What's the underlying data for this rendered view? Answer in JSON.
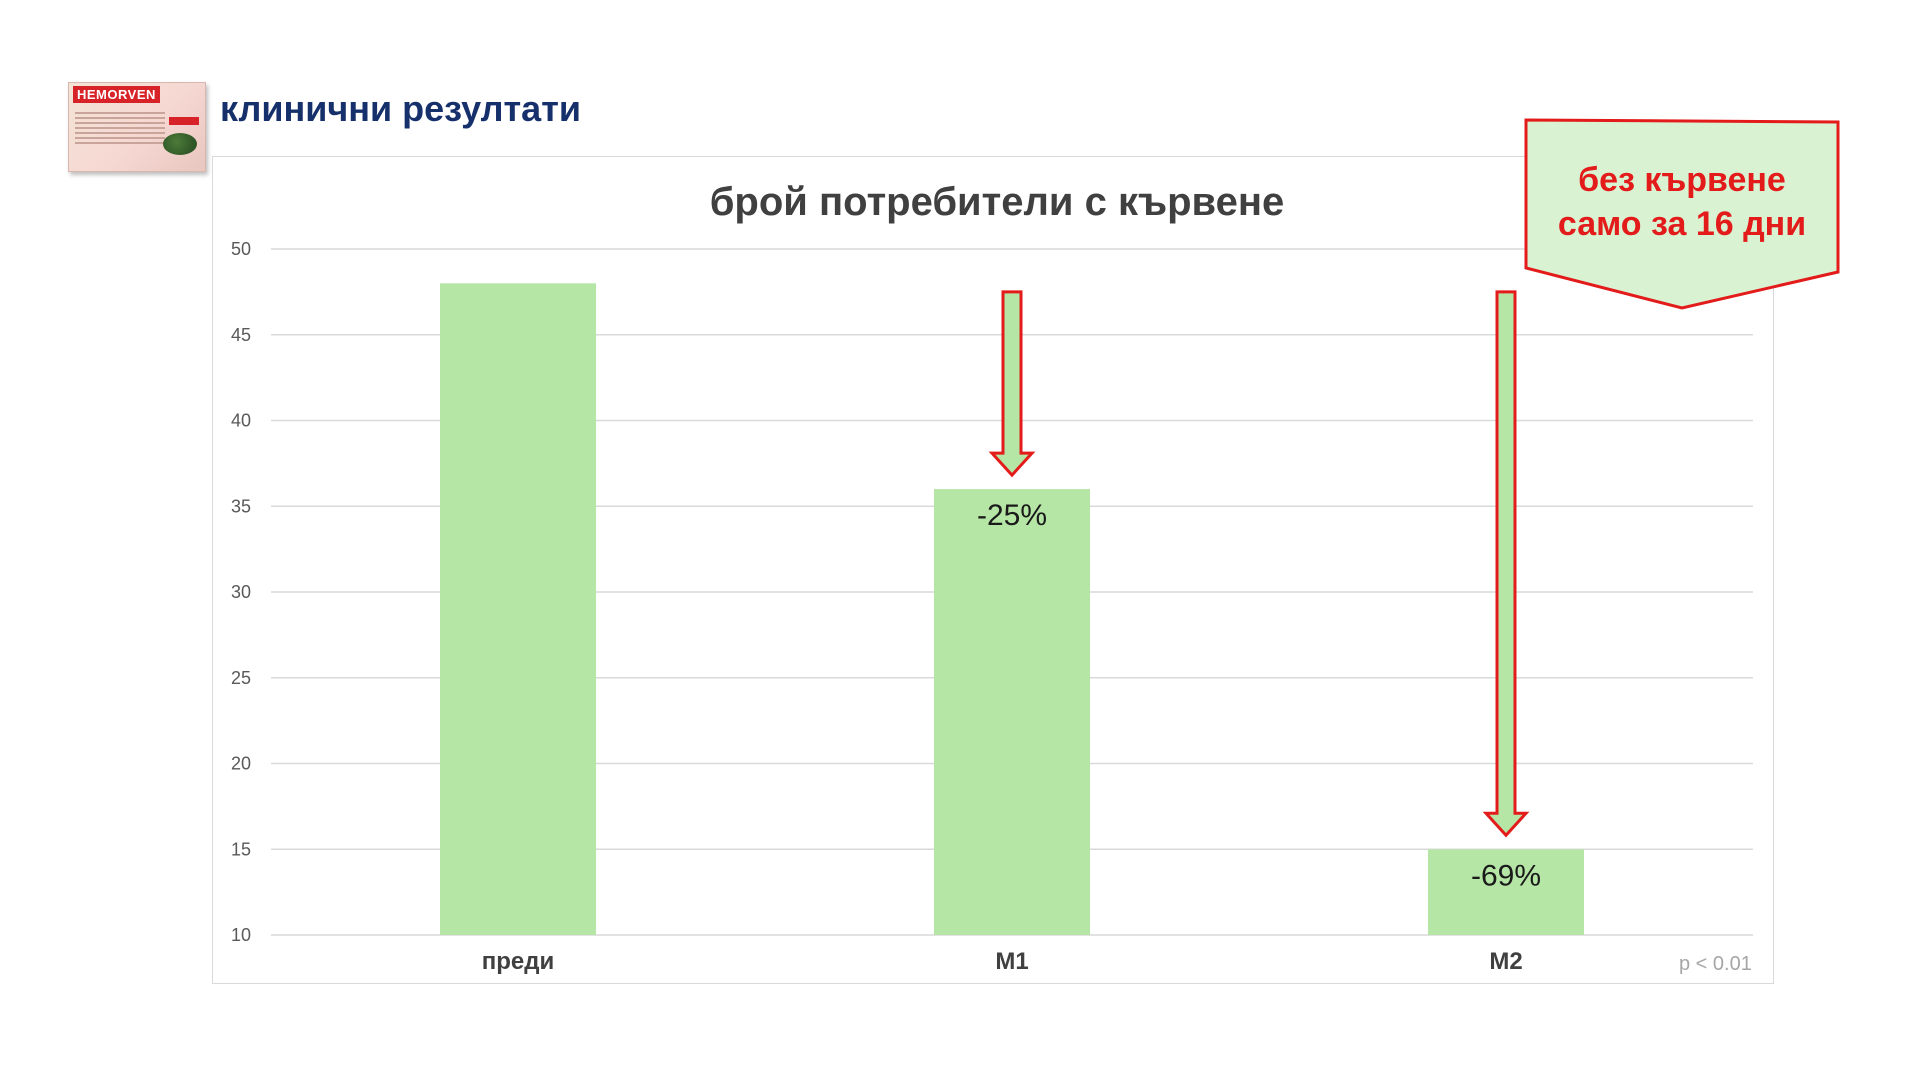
{
  "header": {
    "title": "клинични резултати",
    "product_brand": "HEMORVEN"
  },
  "callout": {
    "line1": "без кървене",
    "line2": "само за 16 дни"
  },
  "colors": {
    "bar": "#b5e6a5",
    "arrow_fill": "#b5e6a5",
    "arrow_stroke": "#e31b1b",
    "title_navy": "#16306b",
    "callout_fill": "#d9f2d2",
    "callout_red": "#e31b1b",
    "grid": "#d9d9d9"
  },
  "chart_data": {
    "type": "bar",
    "title": "брой потребители с кървене",
    "categories": [
      "преди",
      "M1",
      "M2"
    ],
    "values": [
      48,
      36,
      15
    ],
    "data_labels": [
      "",
      "-25%",
      "-69%"
    ],
    "ylim": [
      10,
      50
    ],
    "yticks": [
      10,
      15,
      20,
      25,
      30,
      35,
      40,
      45,
      50
    ],
    "grid": true,
    "annotation": "p < 0.01"
  }
}
